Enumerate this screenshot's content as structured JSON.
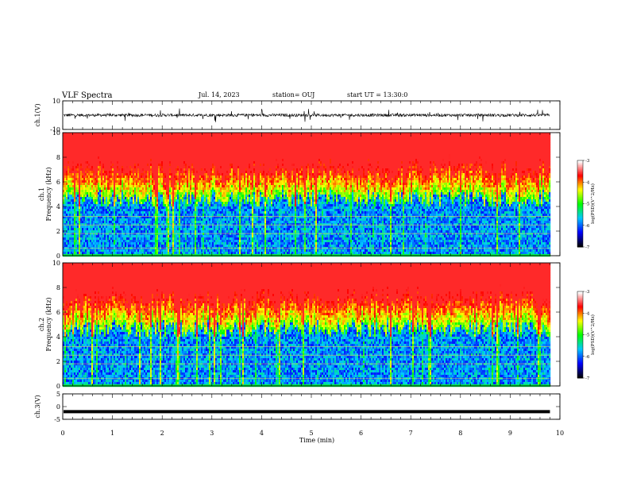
{
  "header": {
    "title": "VLF Spectra",
    "date": "Jul. 14, 2023",
    "station": "station= OUJ",
    "start_ut": "start UT = 13:30:0"
  },
  "chart_data": [
    {
      "type": "line",
      "ylabel": "ch.1(V)",
      "ylim": [
        -10,
        10
      ],
      "yticks": [
        "10",
        "-10"
      ],
      "xlim": [
        0,
        10
      ],
      "baseline": 0,
      "amplitude": 2,
      "line_color": "#000000"
    },
    {
      "type": "heatmap",
      "ylabel_lines": [
        "ch.1",
        "Frequency (kHz)"
      ],
      "ylim": [
        0,
        10
      ],
      "yticks": [
        "0",
        "2",
        "4",
        "6",
        "8",
        "10"
      ],
      "xlim": [
        0,
        10
      ],
      "data_xmax": 9.8,
      "colorbar": {
        "label": "log(PSD)(V^2/Hz)",
        "range": [
          -7,
          -3
        ],
        "ticks": [
          "-3",
          "-4",
          "-5",
          "-6",
          "-7"
        ],
        "colors": [
          "#000000",
          "#0000ff",
          "#00c8ff",
          "#00ff00",
          "#ffff00",
          "#ff0000",
          "#ffffff"
        ]
      }
    },
    {
      "type": "heatmap",
      "ylabel_lines": [
        "ch.2",
        "Frequency (kHz)"
      ],
      "ylim": [
        0,
        10
      ],
      "yticks": [
        "0",
        "2",
        "4",
        "6",
        "8",
        "10"
      ],
      "xlim": [
        0,
        10
      ],
      "data_xmax": 9.8,
      "colorbar": {
        "label": "log(PSD)(V^2/Hz)",
        "range": [
          -7,
          -3
        ],
        "ticks": [
          "-3",
          "-4",
          "-5",
          "-6",
          "-7"
        ],
        "colors": [
          "#000000",
          "#0000ff",
          "#00c8ff",
          "#00ff00",
          "#ffff00",
          "#ff0000",
          "#ffffff"
        ]
      }
    },
    {
      "type": "line",
      "ylabel": "ch.3(V)",
      "ylim": [
        -5,
        5
      ],
      "yticks": [
        "5",
        "0",
        "-5"
      ],
      "xlim": [
        0,
        10
      ],
      "baseline": -2,
      "line_color": "#000000"
    }
  ],
  "x_axis": {
    "label": "Time (min)",
    "ticks": [
      "0",
      "1",
      "2",
      "3",
      "4",
      "5",
      "6",
      "7",
      "8",
      "9",
      "10"
    ]
  }
}
